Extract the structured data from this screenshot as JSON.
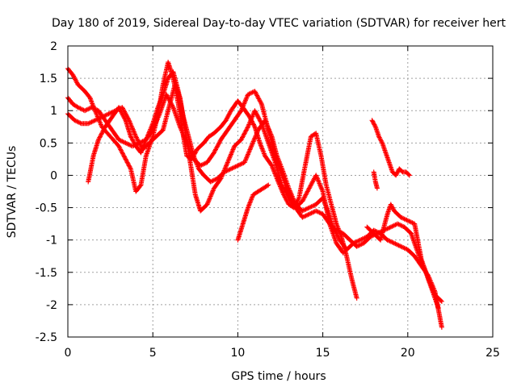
{
  "chart_data": {
    "type": "scatter",
    "title": "Day 180 of 2019, Sidereal Day-to-day VTEC variation (SDTVAR) for receiver hert",
    "xlabel": "GPS time / hours",
    "ylabel": "SDTVAR / TECUs",
    "xlim": [
      0,
      25
    ],
    "ylim": [
      -2.5,
      2
    ],
    "xticks": [
      0,
      5,
      10,
      15,
      20,
      25
    ],
    "yticks": [
      -2.5,
      -2,
      -1.5,
      -1,
      -0.5,
      0,
      0.5,
      1,
      1.5,
      2
    ],
    "xtick_labels": [
      "0",
      "5",
      "10",
      "15",
      "20",
      "25"
    ],
    "ytick_labels": [
      "-2.5",
      "-2",
      "-1.5",
      "-1",
      "-0.5",
      "0",
      "0.5",
      "1",
      "1.5",
      "2"
    ],
    "grid": true,
    "marker": "+",
    "color": "#ff0000",
    "series": [
      {
        "name": "track-1",
        "x": [
          0.0,
          0.3,
          0.6,
          1.0,
          1.3,
          1.6,
          2.0,
          2.5,
          3.0,
          3.3,
          3.7,
          4.0,
          4.3,
          4.6,
          5.0,
          5.3,
          5.6,
          5.9,
          6.2,
          6.5,
          6.8,
          7.0,
          7.3,
          7.6,
          8.0,
          8.3,
          8.6,
          9.0,
          9.3,
          9.6,
          10.0,
          10.3,
          10.7,
          11.0,
          11.3,
          11.6,
          12.0,
          12.3,
          12.7,
          13.0,
          13.3,
          13.6,
          14.0,
          14.3,
          14.6,
          14.9,
          15.2,
          15.5,
          15.8,
          16.1,
          16.4,
          16.7,
          17.0
        ],
        "y": [
          1.65,
          1.55,
          1.4,
          1.3,
          1.2,
          1.0,
          0.75,
          0.6,
          0.45,
          0.3,
          0.1,
          -0.25,
          -0.15,
          0.3,
          0.6,
          0.95,
          1.4,
          1.75,
          1.5,
          1.1,
          0.6,
          0.3,
          0.25,
          0.4,
          0.5,
          0.6,
          0.65,
          0.75,
          0.85,
          1.0,
          1.15,
          1.05,
          0.9,
          0.75,
          0.5,
          0.3,
          0.15,
          -0.05,
          -0.3,
          -0.45,
          -0.5,
          -0.35,
          0.2,
          0.6,
          0.65,
          0.3,
          -0.15,
          -0.45,
          -0.75,
          -0.95,
          -1.25,
          -1.6,
          -1.9
        ]
      },
      {
        "name": "track-2",
        "x": [
          0.0,
          0.3,
          0.6,
          1.0,
          1.4,
          1.8,
          2.2,
          2.6,
          3.0,
          3.4,
          3.8,
          4.2,
          4.6,
          5.0,
          5.3,
          5.6,
          5.9,
          6.2,
          6.5,
          6.8,
          7.1,
          7.4,
          7.7,
          8.0,
          8.4,
          8.8,
          9.2,
          9.6,
          10.0,
          10.4,
          10.8,
          11.2,
          11.6,
          12.0,
          12.3,
          12.6,
          13.0,
          13.4,
          13.8,
          14.2,
          14.6,
          15.0,
          15.3,
          15.6,
          16.0,
          16.4,
          16.8,
          17.2,
          17.6,
          18.0,
          18.4,
          18.8,
          19.2,
          19.6,
          20.0,
          20.4,
          20.8,
          21.2,
          21.6,
          22.0
        ],
        "y": [
          1.2,
          1.1,
          1.05,
          1.0,
          1.05,
          1.0,
          0.85,
          0.7,
          0.55,
          0.5,
          0.45,
          0.5,
          0.55,
          0.8,
          1.05,
          1.25,
          1.5,
          1.6,
          1.3,
          0.9,
          0.6,
          0.3,
          0.1,
          0.0,
          -0.1,
          -0.05,
          0.05,
          0.1,
          0.15,
          0.2,
          0.45,
          0.7,
          0.85,
          0.6,
          0.3,
          0.1,
          -0.2,
          -0.45,
          -0.55,
          -0.5,
          -0.45,
          -0.35,
          -0.55,
          -0.8,
          -1.0,
          -1.15,
          -1.05,
          -1.0,
          -0.95,
          -0.85,
          -0.9,
          -1.0,
          -1.05,
          -1.1,
          -1.15,
          -1.25,
          -1.4,
          -1.55,
          -1.8,
          -2.35
        ]
      },
      {
        "name": "track-3",
        "x": [
          0.0,
          0.4,
          0.8,
          1.2,
          1.6,
          2.0,
          2.4,
          2.8,
          3.2,
          3.6,
          4.0,
          4.4,
          4.8,
          5.2,
          5.6,
          6.0,
          6.3,
          6.6,
          6.9,
          7.2,
          7.5,
          7.8,
          8.2,
          8.6,
          9.0,
          9.4,
          9.8,
          10.2,
          10.6,
          11.0,
          11.4,
          11.8,
          12.2,
          12.6,
          13.0,
          13.4,
          13.8,
          14.2,
          14.6,
          15.0,
          15.4,
          15.8,
          16.2,
          16.6,
          17.0,
          17.4,
          17.8,
          18.2,
          18.6,
          19.0,
          19.4,
          19.8,
          20.2,
          20.6,
          21.0,
          21.4,
          21.8
        ],
        "y": [
          0.95,
          0.85,
          0.8,
          0.8,
          0.85,
          0.9,
          0.95,
          1.0,
          1.05,
          0.85,
          0.6,
          0.4,
          0.5,
          0.6,
          0.7,
          1.1,
          1.4,
          1.2,
          0.7,
          0.2,
          -0.3,
          -0.55,
          -0.45,
          -0.2,
          -0.05,
          0.2,
          0.45,
          0.55,
          0.75,
          1.0,
          0.8,
          0.5,
          0.2,
          -0.15,
          -0.35,
          -0.5,
          -0.65,
          -0.6,
          -0.55,
          -0.6,
          -0.75,
          -0.85,
          -0.9,
          -1.0,
          -1.1,
          -1.05,
          -0.95,
          -0.9,
          -0.85,
          -0.8,
          -0.75,
          -0.8,
          -0.9,
          -1.2,
          -1.45,
          -1.75,
          -2.05
        ]
      },
      {
        "name": "track-4",
        "x": [
          1.2,
          1.5,
          1.8,
          2.2,
          2.6,
          3.0,
          3.4,
          3.7,
          4.0,
          4.3,
          4.6,
          5.0,
          5.4,
          5.8,
          6.2,
          6.6,
          7.0,
          7.4,
          7.8,
          8.2,
          8.6,
          9.0,
          9.4,
          9.8,
          10.2,
          10.6,
          11.0,
          11.4,
          11.8,
          12.2,
          12.6,
          13.0,
          13.4,
          13.8,
          14.2,
          14.6,
          15.0,
          15.4,
          15.8,
          16.2
        ],
        "y": [
          -0.1,
          0.3,
          0.55,
          0.75,
          0.9,
          1.05,
          0.85,
          0.6,
          0.45,
          0.35,
          0.55,
          0.7,
          0.95,
          1.25,
          1.05,
          0.75,
          0.5,
          0.25,
          0.15,
          0.2,
          0.35,
          0.55,
          0.7,
          0.85,
          1.0,
          1.25,
          1.3,
          1.1,
          0.7,
          0.3,
          0.0,
          -0.3,
          -0.5,
          -0.4,
          -0.2,
          0.0,
          -0.25,
          -0.75,
          -1.05,
          -1.2
        ]
      },
      {
        "name": "track-5",
        "x": [
          10.0,
          10.3,
          10.6,
          10.9,
          11.2,
          11.5,
          11.8
        ],
        "y": [
          -1.0,
          -0.75,
          -0.5,
          -0.3,
          -0.25,
          -0.2,
          -0.15
        ]
      },
      {
        "name": "track-6",
        "x": [
          17.9,
          18.1,
          18.3,
          18.5,
          18.7,
          18.9,
          19.1,
          19.3,
          19.5,
          19.7,
          19.9,
          20.1
        ],
        "y": [
          0.85,
          0.75,
          0.6,
          0.5,
          0.35,
          0.2,
          0.05,
          0.0,
          0.1,
          0.05,
          0.05,
          0.0
        ]
      },
      {
        "name": "track-7",
        "x": [
          18.0,
          18.1,
          18.2
        ],
        "y": [
          0.05,
          -0.1,
          -0.2
        ]
      },
      {
        "name": "track-8",
        "x": [
          17.6,
          18.0,
          18.4,
          18.8,
          19.0,
          19.2,
          19.6,
          20.0,
          20.4,
          20.8,
          21.2,
          21.6,
          22.0
        ],
        "y": [
          -0.8,
          -0.9,
          -1.0,
          -0.6,
          -0.45,
          -0.55,
          -0.65,
          -0.7,
          -0.75,
          -1.3,
          -1.6,
          -1.85,
          -1.95
        ]
      }
    ]
  }
}
